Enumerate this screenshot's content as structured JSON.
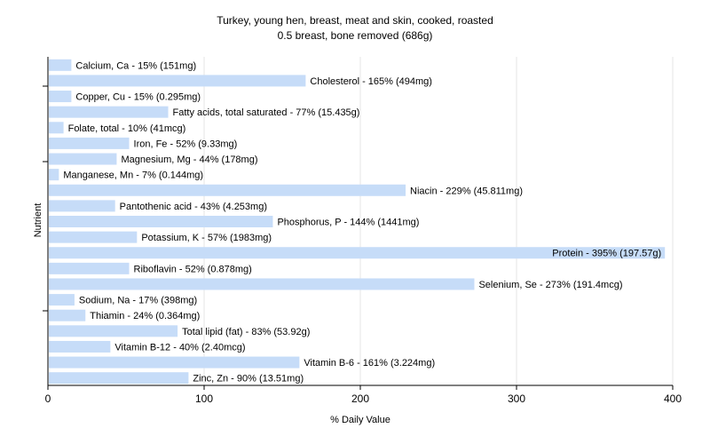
{
  "chart_data": {
    "type": "bar",
    "orientation": "horizontal",
    "title": "Turkey, young hen, breast, meat and skin, cooked, roasted",
    "subtitle": "0.5 breast, bone removed (686g)",
    "xlabel": "% Daily Value",
    "ylabel": "Nutrient",
    "xlim": [
      0,
      400
    ],
    "xticks": [
      0,
      100,
      200,
      300,
      400
    ],
    "grid": true,
    "bar_color": "#c6dcf8",
    "bars": [
      {
        "name": "Calcium, Ca",
        "value": 15,
        "label": "Calcium, Ca - 15% (151mg)"
      },
      {
        "name": "Cholesterol",
        "value": 165,
        "label": "Cholesterol - 165% (494mg)"
      },
      {
        "name": "Copper, Cu",
        "value": 15,
        "label": "Copper, Cu - 15% (0.295mg)"
      },
      {
        "name": "Fatty acids, total saturated",
        "value": 77,
        "label": "Fatty acids, total saturated - 77% (15.435g)"
      },
      {
        "name": "Folate, total",
        "value": 10,
        "label": "Folate, total - 10% (41mcg)"
      },
      {
        "name": "Iron, Fe",
        "value": 52,
        "label": "Iron, Fe - 52% (9.33mg)"
      },
      {
        "name": "Magnesium, Mg",
        "value": 44,
        "label": "Magnesium, Mg - 44% (178mg)"
      },
      {
        "name": "Manganese, Mn",
        "value": 7,
        "label": "Manganese, Mn - 7% (0.144mg)"
      },
      {
        "name": "Niacin",
        "value": 229,
        "label": "Niacin - 229% (45.811mg)"
      },
      {
        "name": "Pantothenic acid",
        "value": 43,
        "label": "Pantothenic acid - 43% (4.253mg)"
      },
      {
        "name": "Phosphorus, P",
        "value": 144,
        "label": "Phosphorus, P - 144% (1441mg)"
      },
      {
        "name": "Potassium, K",
        "value": 57,
        "label": "Potassium, K - 57% (1983mg)"
      },
      {
        "name": "Protein",
        "value": 395,
        "label": "Protein - 395% (197.57g)"
      },
      {
        "name": "Riboflavin",
        "value": 52,
        "label": "Riboflavin - 52% (0.878mg)"
      },
      {
        "name": "Selenium, Se",
        "value": 273,
        "label": "Selenium, Se - 273% (191.4mcg)"
      },
      {
        "name": "Sodium, Na",
        "value": 17,
        "label": "Sodium, Na - 17% (398mg)"
      },
      {
        "name": "Thiamin",
        "value": 24,
        "label": "Thiamin - 24% (0.364mg)"
      },
      {
        "name": "Total lipid (fat)",
        "value": 83,
        "label": "Total lipid (fat) - 83% (53.92g)"
      },
      {
        "name": "Vitamin B-12",
        "value": 40,
        "label": "Vitamin B-12 - 40% (2.40mcg)"
      },
      {
        "name": "Vitamin B-6",
        "value": 161,
        "label": "Vitamin B-6 - 161% (3.224mg)"
      },
      {
        "name": "Zinc, Zn",
        "value": 90,
        "label": "Zinc, Zn - 90% (13.51mg)"
      }
    ]
  }
}
